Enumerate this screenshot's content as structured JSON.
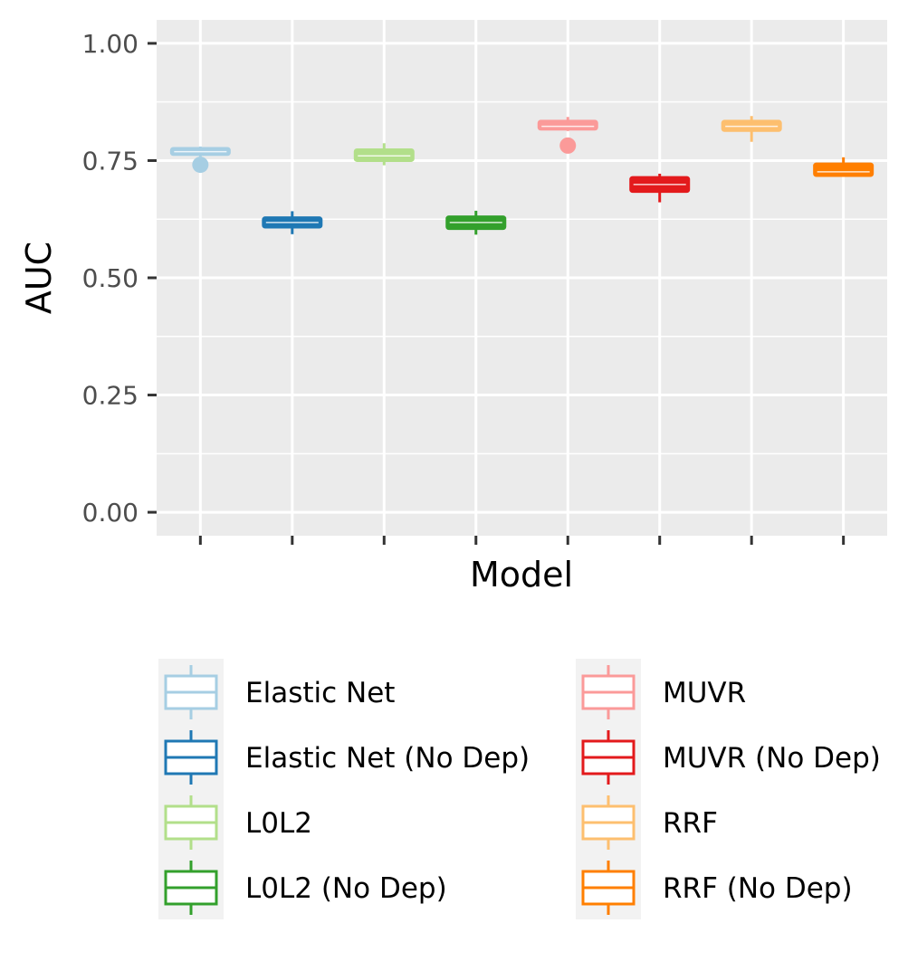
{
  "chart_data": {
    "type": "box",
    "xlabel": "Model",
    "ylabel": "AUC",
    "ylim": [
      -0.05,
      1.05
    ],
    "yticks": [
      {
        "value": 0.0,
        "label": "0.00"
      },
      {
        "value": 0.25,
        "label": "0.25"
      },
      {
        "value": 0.5,
        "label": "0.50"
      },
      {
        "value": 0.75,
        "label": "0.75"
      },
      {
        "value": 1.0,
        "label": "1.00"
      }
    ],
    "x_tick_labels_shown": false,
    "grid": true,
    "legend_position": "bottom",
    "boxes": [
      {
        "name": "Elastic Net",
        "color": "#a6cee3",
        "min": 0.758,
        "q1": 0.763,
        "median": 0.769,
        "q3": 0.776,
        "max": 0.78,
        "outliers": [
          0.741
        ]
      },
      {
        "name": "Elastic Net (No Dep)",
        "color": "#1f78b4",
        "min": 0.593,
        "q1": 0.608,
        "median": 0.618,
        "q3": 0.628,
        "max": 0.642,
        "outliers": []
      },
      {
        "name": "L0L2",
        "color": "#b2df8a",
        "min": 0.74,
        "q1": 0.75,
        "median": 0.76,
        "q3": 0.773,
        "max": 0.787,
        "outliers": []
      },
      {
        "name": "L0L2 (No Dep)",
        "color": "#33a02c",
        "min": 0.592,
        "q1": 0.605,
        "median": 0.618,
        "q3": 0.63,
        "max": 0.643,
        "outliers": []
      },
      {
        "name": "MUVR",
        "color": "#fb9a99",
        "min": 0.813,
        "q1": 0.817,
        "median": 0.823,
        "q3": 0.834,
        "max": 0.843,
        "outliers": [
          0.782
        ]
      },
      {
        "name": "MUVR (No Dep)",
        "color": "#e31a1c",
        "min": 0.661,
        "q1": 0.684,
        "median": 0.699,
        "q3": 0.714,
        "max": 0.722,
        "outliers": []
      },
      {
        "name": "RRF",
        "color": "#fdbf6f",
        "min": 0.79,
        "q1": 0.814,
        "median": 0.823,
        "q3": 0.834,
        "max": 0.845,
        "outliers": []
      },
      {
        "name": "RRF (No Dep)",
        "color": "#ff7f00",
        "min": 0.716,
        "q1": 0.718,
        "median": 0.726,
        "q3": 0.743,
        "max": 0.757,
        "outliers": []
      }
    ]
  }
}
